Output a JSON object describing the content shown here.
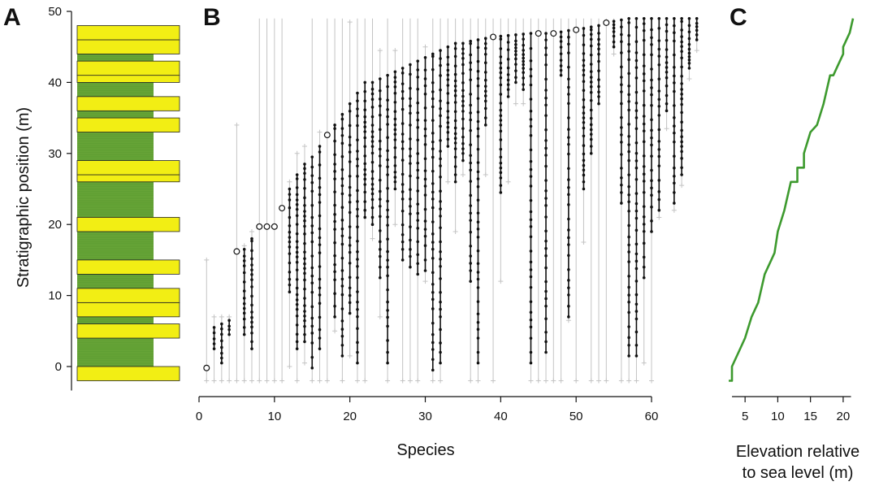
{
  "panels": {
    "a": {
      "letter": "A"
    },
    "b": {
      "letter": "B"
    },
    "c": {
      "letter": "C"
    }
  },
  "colors": {
    "mudstone": "#5f9e32",
    "sandstone": "#f2ee14",
    "range_line": "#111111",
    "gray_line": "#c4c4c4",
    "elevation_curve": "#3d9a2e"
  },
  "chart_data": [
    {
      "id": "stratigraphic_column",
      "type": "column",
      "ylabel": "Stratigraphic position (m)",
      "ylim": [
        -2,
        50
      ],
      "yticks": [
        0,
        10,
        20,
        30,
        40,
        50
      ],
      "mudstone_range": [
        -2,
        48
      ],
      "sandstone_beds": [
        [
          -2,
          0
        ],
        [
          4,
          6
        ],
        [
          7,
          9
        ],
        [
          9,
          11
        ],
        [
          13,
          15
        ],
        [
          19,
          21
        ],
        [
          26,
          27
        ],
        [
          27,
          29
        ],
        [
          33,
          35
        ],
        [
          36,
          38
        ],
        [
          40,
          41
        ],
        [
          41,
          43
        ],
        [
          44,
          46
        ],
        [
          46,
          48
        ]
      ]
    },
    {
      "id": "species_ranges",
      "type": "range",
      "xlabel": "Species",
      "ylim": [
        -2,
        50
      ],
      "xlim": [
        0,
        66
      ],
      "xticks": [
        0,
        10,
        20,
        30,
        40,
        50,
        60
      ],
      "note": "Each species has a black observed range (first to last occurrence), occurrence points along it, and a gray extended range; single-occurrence species shown as open circles.",
      "series": [
        {
          "name": "1",
          "lo": -0.2,
          "hi": -0.2,
          "glo": -2,
          "ghi": 15
        },
        {
          "name": "2",
          "lo": 2.5,
          "hi": 5.5,
          "glo": -2,
          "ghi": 7
        },
        {
          "name": "3",
          "lo": 0.5,
          "hi": 6,
          "glo": -2,
          "ghi": 7
        },
        {
          "name": "4",
          "lo": 4.5,
          "hi": 6.5,
          "glo": -2,
          "ghi": 7
        },
        {
          "name": "5",
          "lo": 16.2,
          "hi": 16.2,
          "glo": -2,
          "ghi": 34
        },
        {
          "name": "6",
          "lo": 4.5,
          "hi": 16.5,
          "glo": -2,
          "ghi": 17
        },
        {
          "name": "7",
          "lo": 2.5,
          "hi": 18,
          "glo": -2,
          "ghi": 19
        },
        {
          "name": "8",
          "lo": 19.7,
          "hi": 19.7,
          "glo": -2,
          "ghi": 49
        },
        {
          "name": "9",
          "lo": 19.7,
          "hi": 19.7,
          "glo": -2,
          "ghi": 49
        },
        {
          "name": "10",
          "lo": 19.7,
          "hi": 19.7,
          "glo": -2,
          "ghi": 49
        },
        {
          "name": "11",
          "lo": 22.3,
          "hi": 22.3,
          "glo": -2,
          "ghi": 49
        },
        {
          "name": "12",
          "lo": 10.5,
          "hi": 25,
          "glo": 0,
          "ghi": 26
        },
        {
          "name": "13",
          "lo": 2.5,
          "hi": 27,
          "glo": -2,
          "ghi": 30
        },
        {
          "name": "14",
          "lo": 3.5,
          "hi": 28.5,
          "glo": 0.5,
          "ghi": 31
        },
        {
          "name": "15",
          "lo": -0.2,
          "hi": 29.5,
          "glo": -2,
          "ghi": 49
        },
        {
          "name": "16",
          "lo": 2.5,
          "hi": 31,
          "glo": -2,
          "ghi": 33
        },
        {
          "name": "17",
          "lo": 32.6,
          "hi": 32.6,
          "glo": -2,
          "ghi": 49
        },
        {
          "name": "18",
          "lo": 7,
          "hi": 34,
          "glo": 5,
          "ghi": 49
        },
        {
          "name": "19",
          "lo": 1.5,
          "hi": 35.5,
          "glo": -2,
          "ghi": 49
        },
        {
          "name": "20",
          "lo": 7.5,
          "hi": 37,
          "glo": 1.5,
          "ghi": 48.5
        },
        {
          "name": "21",
          "lo": 0.5,
          "hi": 38.5,
          "glo": -2,
          "ghi": 49
        },
        {
          "name": "22",
          "lo": 21,
          "hi": 40,
          "glo": -2,
          "ghi": 49
        },
        {
          "name": "23",
          "lo": 20,
          "hi": 40,
          "glo": 18,
          "ghi": 49
        },
        {
          "name": "24",
          "lo": 12.5,
          "hi": 40.5,
          "glo": 7,
          "ghi": 44.5
        },
        {
          "name": "25",
          "lo": 0.5,
          "hi": 41,
          "glo": -2,
          "ghi": 49
        },
        {
          "name": "26",
          "lo": 25,
          "hi": 41.5,
          "glo": 20,
          "ghi": 44.5
        },
        {
          "name": "27",
          "lo": 15,
          "hi": 42,
          "glo": -2,
          "ghi": 49
        },
        {
          "name": "28",
          "lo": 14,
          "hi": 42.5,
          "glo": -2,
          "ghi": 49
        },
        {
          "name": "29",
          "lo": 13,
          "hi": 43,
          "glo": -2,
          "ghi": 49
        },
        {
          "name": "30",
          "lo": 13.5,
          "hi": 43.5,
          "glo": 12,
          "ghi": 45
        },
        {
          "name": "31",
          "lo": -0.5,
          "hi": 44,
          "glo": -2,
          "ghi": 49
        },
        {
          "name": "32",
          "lo": 0.5,
          "hi": 44.5,
          "glo": -2,
          "ghi": 49
        },
        {
          "name": "33",
          "lo": 31,
          "hi": 45,
          "glo": 26,
          "ghi": 49
        },
        {
          "name": "34",
          "lo": 26,
          "hi": 45.5,
          "glo": 19,
          "ghi": 49
        },
        {
          "name": "35",
          "lo": 29,
          "hi": 45.5,
          "glo": 27,
          "ghi": 49
        },
        {
          "name": "36",
          "lo": 12,
          "hi": 45.8,
          "glo": -2,
          "ghi": 49
        },
        {
          "name": "37",
          "lo": 0.5,
          "hi": 46,
          "glo": -2,
          "ghi": 49
        },
        {
          "name": "38",
          "lo": 34,
          "hi": 46.2,
          "glo": 27,
          "ghi": 49
        },
        {
          "name": "39",
          "lo": 46.4,
          "hi": 46.4,
          "glo": -2,
          "ghi": 49
        },
        {
          "name": "40",
          "lo": 24.5,
          "hi": 46.5,
          "glo": 12,
          "ghi": 49
        },
        {
          "name": "41",
          "lo": 38,
          "hi": 46.6,
          "glo": 26,
          "ghi": 49
        },
        {
          "name": "42",
          "lo": 40,
          "hi": 46.7,
          "glo": 37,
          "ghi": 49
        },
        {
          "name": "43",
          "lo": 39,
          "hi": 46.8,
          "glo": 37,
          "ghi": 49
        },
        {
          "name": "44",
          "lo": 0.5,
          "hi": 46.9,
          "glo": -2,
          "ghi": 49
        },
        {
          "name": "45",
          "lo": 46.9,
          "hi": 46.9,
          "glo": -2,
          "ghi": 49
        },
        {
          "name": "46",
          "lo": 2,
          "hi": 46.9,
          "glo": -2,
          "ghi": 49
        },
        {
          "name": "47",
          "lo": 46.9,
          "hi": 46.9,
          "glo": -2,
          "ghi": 49
        },
        {
          "name": "48",
          "lo": 41,
          "hi": 47.1,
          "glo": -2,
          "ghi": 49
        },
        {
          "name": "49",
          "lo": 7,
          "hi": 47.3,
          "glo": 6.5,
          "ghi": 49
        },
        {
          "name": "50",
          "lo": 47.4,
          "hi": 47.4,
          "glo": -2,
          "ghi": 49
        },
        {
          "name": "51",
          "lo": 25,
          "hi": 47.6,
          "glo": 17.5,
          "ghi": 49
        },
        {
          "name": "52",
          "lo": 30,
          "hi": 47.8,
          "glo": -2,
          "ghi": 49
        },
        {
          "name": "53",
          "lo": 37,
          "hi": 48,
          "glo": -2,
          "ghi": 49
        },
        {
          "name": "54",
          "lo": 48.4,
          "hi": 48.4,
          "glo": -2,
          "ghi": 49
        },
        {
          "name": "55",
          "lo": 45,
          "hi": 48.6,
          "glo": 44,
          "ghi": 49
        },
        {
          "name": "56",
          "lo": 23,
          "hi": 48.8,
          "glo": -2,
          "ghi": 49
        },
        {
          "name": "57",
          "lo": 1.5,
          "hi": 49,
          "glo": -2,
          "ghi": 49
        },
        {
          "name": "58",
          "lo": 1.5,
          "hi": 49,
          "glo": -2,
          "ghi": 49
        },
        {
          "name": "59",
          "lo": 12.5,
          "hi": 49,
          "glo": 0.5,
          "ghi": 49
        },
        {
          "name": "60",
          "lo": 19,
          "hi": 49,
          "glo": -2,
          "ghi": 49
        },
        {
          "name": "61",
          "lo": 22,
          "hi": 49,
          "glo": 21,
          "ghi": 49
        },
        {
          "name": "62",
          "lo": 36,
          "hi": 49,
          "glo": 33.5,
          "ghi": 49
        },
        {
          "name": "63",
          "lo": 23,
          "hi": 49,
          "glo": 22,
          "ghi": 49
        },
        {
          "name": "64",
          "lo": 27,
          "hi": 49,
          "glo": 25.5,
          "ghi": 49
        },
        {
          "name": "65",
          "lo": 42,
          "hi": 49,
          "glo": 40.5,
          "ghi": 49
        },
        {
          "name": "66",
          "lo": 46,
          "hi": 49,
          "glo": 44.5,
          "ghi": 49
        }
      ]
    },
    {
      "id": "elevation",
      "type": "line",
      "xlabel": "Elevation relative to sea level (m)",
      "xlabel_lines": [
        "Elevation relative",
        "to sea level (m)"
      ],
      "xlim": [
        2,
        22
      ],
      "xticks": [
        5,
        10,
        15,
        20
      ],
      "x": [
        2.5,
        3,
        3,
        4,
        5,
        5,
        6,
        6,
        7,
        7,
        8,
        8,
        9,
        9.5,
        10,
        10,
        11,
        11.5,
        12,
        13,
        13,
        14,
        14,
        15,
        16,
        16,
        17,
        17,
        18,
        18.5,
        19,
        19,
        20,
        20,
        21,
        21.5
      ],
      "y": [
        -2,
        -2,
        0,
        2,
        4,
        4,
        7,
        7,
        9,
        9,
        13,
        13,
        15,
        16,
        19,
        19,
        22,
        24,
        26,
        26,
        28,
        28,
        30,
        33,
        34,
        34,
        37,
        37,
        41,
        41,
        42,
        42,
        44,
        45,
        47,
        49
      ]
    }
  ]
}
